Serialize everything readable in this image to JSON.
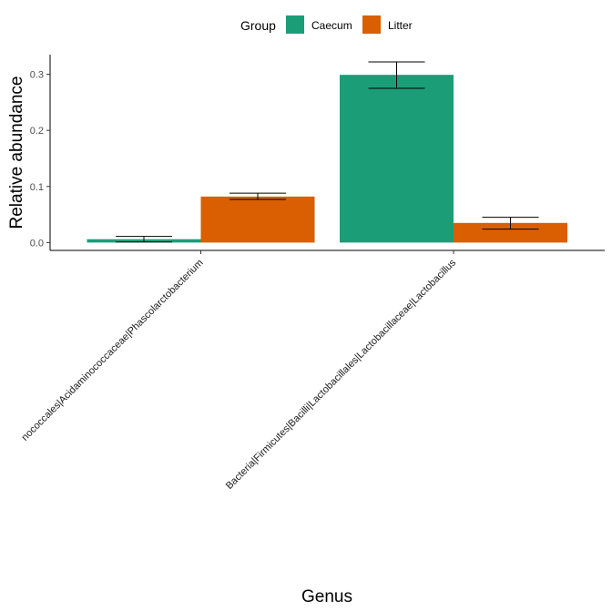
{
  "chart_data": {
    "type": "bar",
    "xlabel": "Genus",
    "ylabel": "Relative abundance",
    "ylim": [
      -0.014,
      0.335
    ],
    "y_ticks": [
      0.0,
      0.1,
      0.2,
      0.3
    ],
    "y_tick_labels": [
      "0.0",
      "0.1",
      "0.2",
      "0.3"
    ],
    "grid": false,
    "legend": {
      "title": "Group",
      "position": "top"
    },
    "categories": [
      "Bacteria|Firmicutes|Negativicutes|Acidaminococcales|Acidaminococcaceae|Phascolarctobacterium",
      "Bacteria|Firmicutes|Bacilli|Lactobacillales|Lactobacillaceae|Lactobacillus"
    ],
    "category_labels_visible": [
      "nococcales|Acidaminococcaceae|Phascolarctobacterium",
      "Bacteria|Firmicutes|Bacilli|Lactobacillales|Lactobacillaceae|Lactobacillus"
    ],
    "series": [
      {
        "name": "Caecum",
        "color": "#1b9e77",
        "values": [
          0.006,
          0.299
        ],
        "error_low": [
          0.001,
          0.275
        ],
        "error_high": [
          0.011,
          0.322
        ]
      },
      {
        "name": "Litter",
        "color": "#d95f02",
        "values": [
          0.082,
          0.035
        ],
        "error_low": [
          0.077,
          0.024
        ],
        "error_high": [
          0.088,
          0.045
        ]
      }
    ]
  }
}
